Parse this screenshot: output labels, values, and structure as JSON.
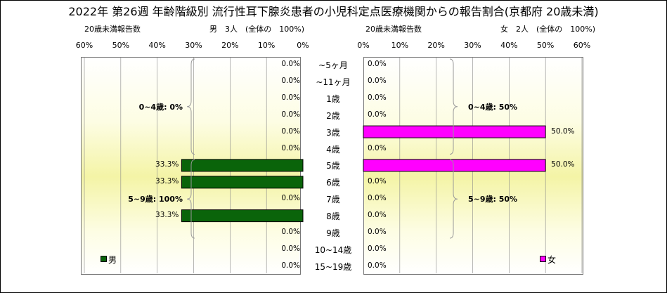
{
  "title": "2022年 第26週 年齢階級別 流行性耳下腺炎患者の小児科定点医療機関からの報告割合(京都府 20歳未満)",
  "left_header": {
    "sub": "20歳未満報告数",
    "main": "男　3人　(全体の　100%)"
  },
  "right_header": {
    "sub": "20歳未満報告数",
    "main": "女　2人　(全体の　100%)"
  },
  "colors": {
    "male": "#0a640a",
    "female": "#ff00ff",
    "grid": "#888888",
    "brace": "#999999"
  },
  "chart_data": {
    "type": "bar",
    "categories": [
      "~5ヶ月",
      "~11ヶ月",
      "1歳",
      "2歳",
      "3歳",
      "4歳",
      "5歳",
      "6歳",
      "7歳",
      "8歳",
      "9歳",
      "10~14歳",
      "15~19歳"
    ],
    "xlim": [
      0,
      60
    ],
    "ticks": [
      "0%",
      "10%",
      "20%",
      "30%",
      "40%",
      "50%",
      "60%"
    ],
    "series": [
      {
        "name": "男",
        "side": "left",
        "values": [
          0,
          0,
          0,
          0,
          0,
          0,
          33.3,
          33.3,
          0,
          33.3,
          0,
          0,
          0
        ],
        "labels": [
          "0.0%",
          "0.0%",
          "0.0%",
          "0.0%",
          "0.0%",
          "0.0%",
          "33.3%",
          "33.3%",
          "0.0%",
          "33.3%",
          "0.0%",
          "0.0%",
          "0.0%"
        ]
      },
      {
        "name": "女",
        "side": "right",
        "values": [
          0,
          0,
          0,
          0,
          50,
          0,
          50,
          0,
          0,
          0,
          0,
          0,
          0
        ],
        "labels": [
          "0.0%",
          "0.0%",
          "0.0%",
          "0.0%",
          "50.0%",
          "0.0%",
          "50.0%",
          "0.0%",
          "0.0%",
          "0.0%",
          "0.0%",
          "0.0%",
          "0.0%"
        ]
      }
    ],
    "annotations": {
      "left": [
        {
          "text": "0~4歳: 0%",
          "from": 0,
          "to": 5
        },
        {
          "text": "5~9歳: 100%",
          "from": 6,
          "to": 10
        }
      ],
      "right": [
        {
          "text": "0~4歳: 50%",
          "from": 0,
          "to": 5
        },
        {
          "text": "5~9歳: 50%",
          "from": 6,
          "to": 10
        }
      ]
    },
    "legend": {
      "left": "男",
      "right": "女"
    }
  }
}
